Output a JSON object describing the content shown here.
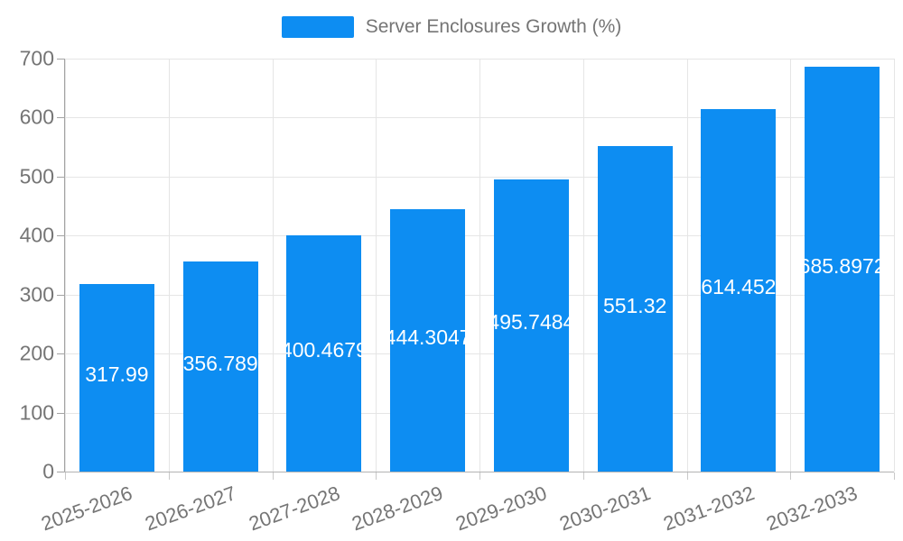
{
  "legend": {
    "label": "Server Enclosures Growth (%)"
  },
  "chart_data": {
    "type": "bar",
    "title": "Server Enclosures Growth (%)",
    "categories": [
      "2025-2026",
      "2026-2027",
      "2027-2028",
      "2028-2029",
      "2029-2030",
      "2030-2031",
      "2031-2032",
      "2032-2033"
    ],
    "values": [
      317.99,
      356.789,
      400.4679,
      444.3047,
      495.7484,
      551.32,
      614.452,
      685.8972
    ],
    "value_labels": [
      "317.99",
      "356.789",
      "400.4679",
      "444.3047",
      "495.7484",
      "551.32",
      "614.452",
      "685.8972"
    ],
    "xlabel": "",
    "ylabel": "",
    "ylim": [
      0,
      700
    ],
    "ytick_interval": 100,
    "yticks": [
      0,
      100,
      200,
      300,
      400,
      500,
      600,
      700
    ],
    "grid": true,
    "legend_position": "top-center",
    "value_label_position": "inside-center",
    "x_label_rotation_deg": -20,
    "colors": {
      "bar": "#0d8df2",
      "value_label_text": "#ffffff",
      "axis_text": "#757575",
      "gridline": "#e5e5e5",
      "axis_line": "#a3a3a3"
    }
  }
}
